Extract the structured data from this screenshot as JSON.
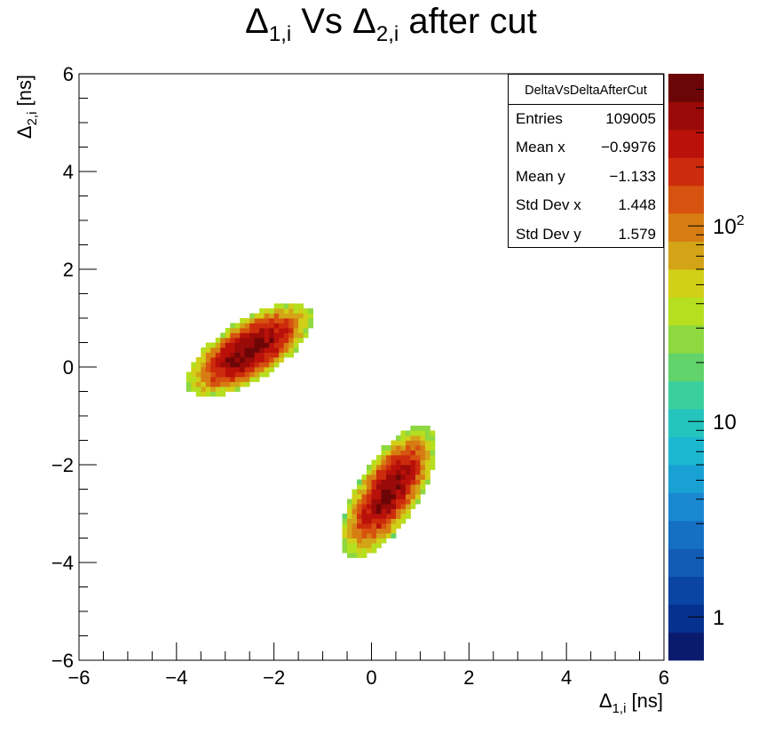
{
  "title": {
    "main": "Δ",
    "sub1": "1,i",
    "mid": " Vs Δ",
    "sub2": "2,i",
    "tail": " after cut"
  },
  "stats": {
    "name": "DeltaVsDeltaAfterCut",
    "rows": [
      {
        "label": "Entries",
        "value": "109005"
      },
      {
        "label": "Mean x",
        "value": "−0.9976"
      },
      {
        "label": "Mean y",
        "value": "−1.133"
      },
      {
        "label": "Std Dev x",
        "value": "1.448"
      },
      {
        "label": "Std Dev y",
        "value": "1.579"
      }
    ]
  },
  "chart_data": {
    "type": "heatmap",
    "title": "Δ1,i Vs Δ2,i after cut",
    "xlabel": {
      "sym": "Δ",
      "sub": "1,i",
      "unit": " [ns]"
    },
    "ylabel": {
      "sym": "Δ",
      "sub": "2,i",
      "unit": " [ns]"
    },
    "xlim": [
      -6,
      6
    ],
    "ylim": [
      -6,
      6
    ],
    "x_ticks": [
      -6,
      -4,
      -2,
      0,
      2,
      4,
      6
    ],
    "y_ticks": [
      -6,
      -4,
      -2,
      0,
      2,
      4,
      6
    ],
    "x_tick_labels": [
      "−6",
      "−4",
      "−2",
      "0",
      "2",
      "4",
      "6"
    ],
    "y_tick_labels": [
      "−6",
      "−4",
      "−2",
      "0",
      "2",
      "4",
      "6"
    ],
    "bin_width": 0.1,
    "z_scale": "log",
    "zlim": [
      0.6,
      600
    ],
    "z_tick_labels": [
      {
        "value": 1,
        "base": "1",
        "exp": ""
      },
      {
        "value": 10,
        "base": "10",
        "exp": ""
      },
      {
        "value": 100,
        "base": "10",
        "exp": "2"
      }
    ],
    "clusters": [
      {
        "center": [
          -2.5,
          0.35
        ],
        "major_axis_deg": 33,
        "half_length": 1.45,
        "half_width": 0.6,
        "peak_count": 500
      },
      {
        "center": [
          0.35,
          -2.55
        ],
        "major_axis_deg": 58,
        "half_length": 1.5,
        "half_width": 0.62,
        "peak_count": 450
      }
    ],
    "palette": [
      "#0a1b6e",
      "#05318f",
      "#0a45a4",
      "#135cb6",
      "#1570c4",
      "#1a88d1",
      "#19a1d4",
      "#1db7d1",
      "#25c4bd",
      "#3ccf9e",
      "#62d36a",
      "#8ed840",
      "#b5df1f",
      "#d1cf17",
      "#d3a417",
      "#d77d13",
      "#d6530f",
      "#cc2c0c",
      "#b9110a",
      "#990a08",
      "#6c0606"
    ],
    "legend": "none",
    "grid": false
  }
}
